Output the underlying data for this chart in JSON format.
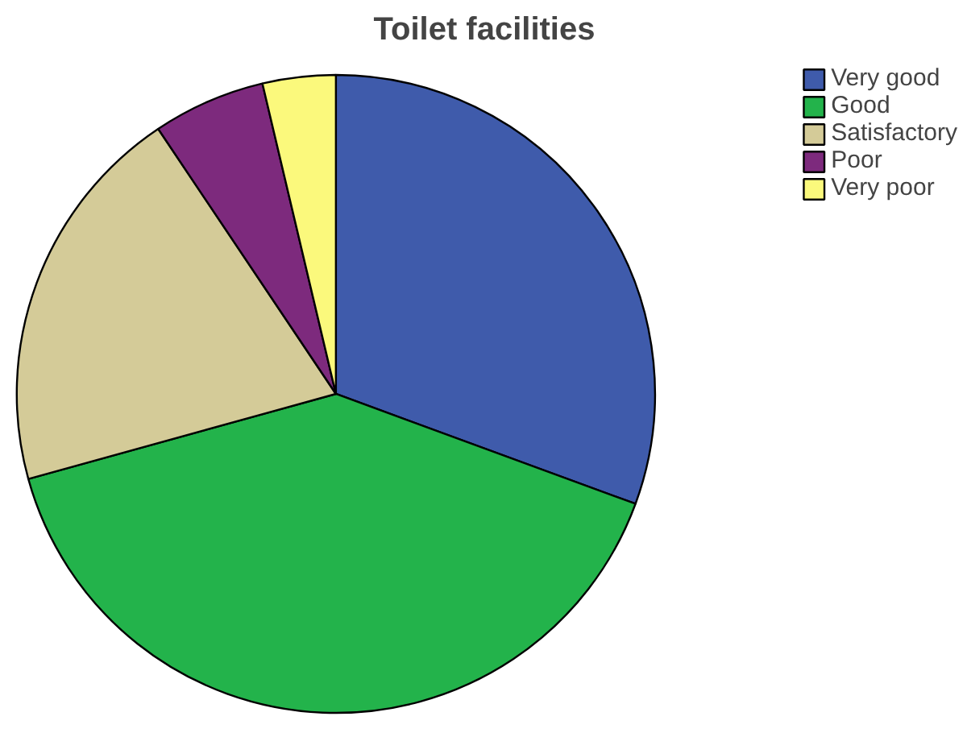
{
  "chart_data": {
    "type": "pie",
    "title": "Toilet facilities",
    "categories": [
      "Very good",
      "Good",
      "Satisfactory",
      "Poor",
      "Very poor"
    ],
    "values": [
      30.6,
      40.1,
      19.9,
      5.7,
      3.7
    ],
    "colors": [
      "#3f5bab",
      "#23b34b",
      "#d4cb98",
      "#7d2a7d",
      "#fbf97c"
    ],
    "legend": "top right"
  }
}
